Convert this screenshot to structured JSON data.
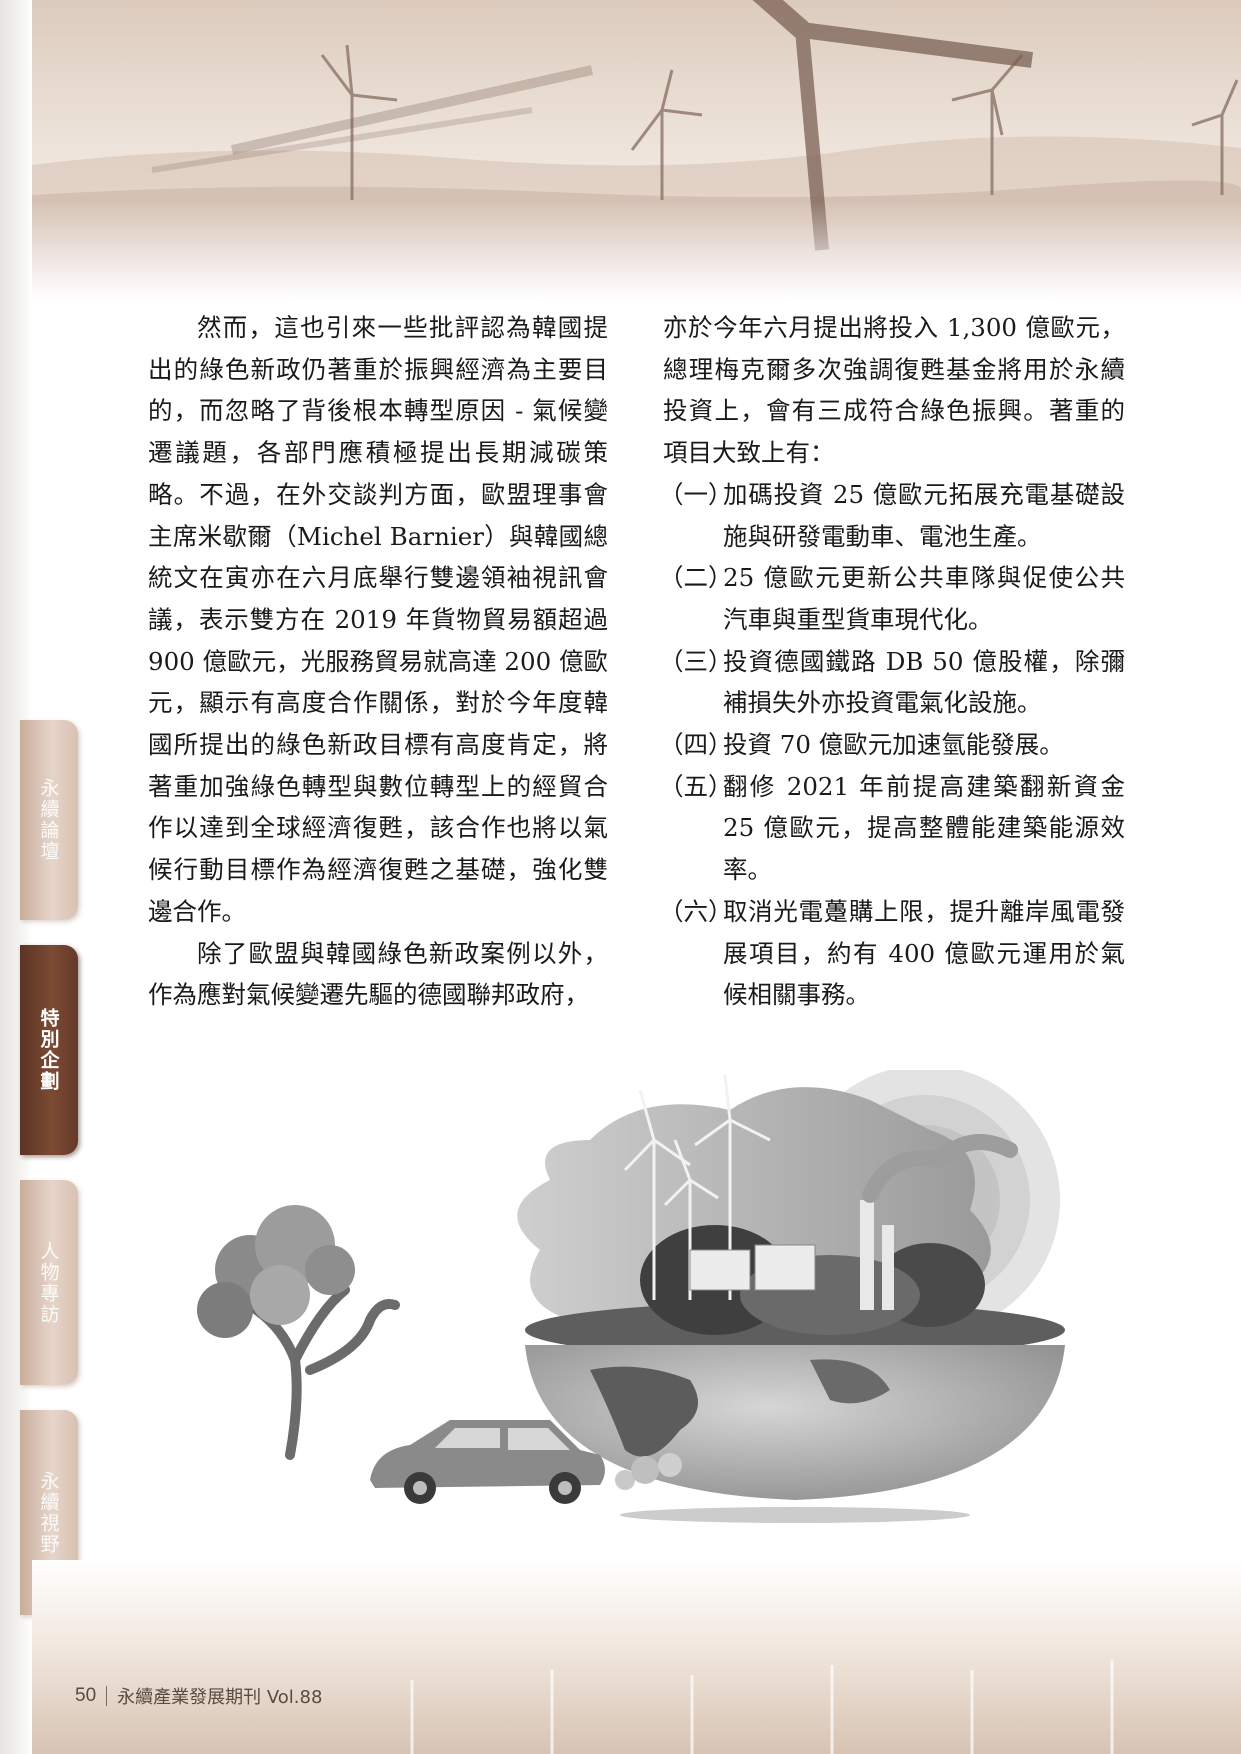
{
  "tabs": [
    {
      "label": "永續論壇",
      "active": false
    },
    {
      "label": "特別企劃",
      "active": true
    },
    {
      "label": "人物專訪",
      "active": false
    },
    {
      "label": "永續視野",
      "active": false
    }
  ],
  "left_column": {
    "p1": "然而，這也引來一些批評認為韓國提出的綠色新政仍著重於振興經濟為主要目的，而忽略了背後根本轉型原因 - 氣候變遷議題，各部門應積極提出長期減碳策略。不過，在外交談判方面，歐盟理事會主席米歇爾（Michel Barnier）與韓國總統文在寅亦在六月底舉行雙邊領袖視訊會議，表示雙方在 2019 年貨物貿易額超過 900 億歐元，光服務貿易就高達 200 億歐元，顯示有高度合作關係，對於今年度韓國所提出的綠色新政目標有高度肯定，將著重加強綠色轉型與數位轉型上的經貿合作以達到全球經濟復甦，該合作也將以氣候行動目標作為經濟復甦之基礎，強化雙邊合作。",
    "p2": "除了歐盟與韓國綠色新政案例以外，作為應對氣候變遷先驅的德國聯邦政府，"
  },
  "right_column": {
    "intro": "亦於今年六月提出將投入 1,300 億歐元，總理梅克爾多次強調復甦基金將用於永續投資上，會有三成符合綠色振興。著重的項目大致上有：",
    "items": [
      {
        "num": "（一）",
        "text": "加碼投資 25 億歐元拓展充電基礎設施與研發電動車、電池生產。"
      },
      {
        "num": "（二）",
        "text": "25 億歐元更新公共車隊與促使公共汽車與重型貨車現代化。"
      },
      {
        "num": "（三）",
        "text": "投資德國鐵路 DB 50 億股權，除彌補損失外亦投資電氣化設施。"
      },
      {
        "num": "（四）",
        "text": "投資 70 億歐元加速氫能發展。"
      },
      {
        "num": "（五）",
        "text": "翻修 2021 年前提高建築翻新資金 25 億歐元，提高整體能建築能源效率。"
      },
      {
        "num": "（六）",
        "text": "取消光電躉購上限，提升離岸風電發展項目，約有 400 億歐元運用於氣候相關事務。"
      }
    ]
  },
  "footer": {
    "page_number": "50",
    "publication": "永續產業發展期刊 Vol.88"
  }
}
